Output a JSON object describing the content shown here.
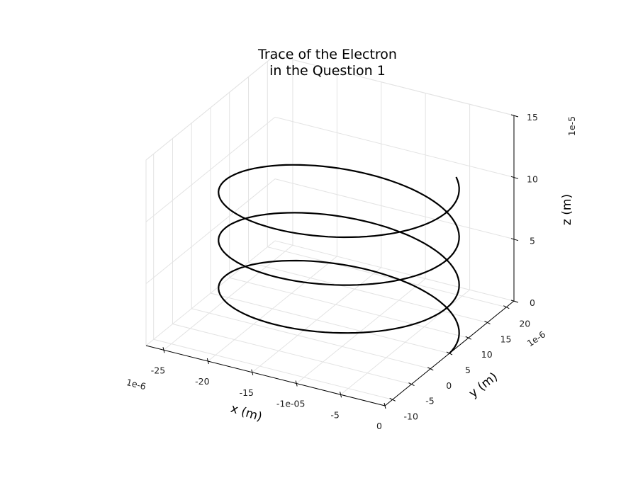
{
  "chart_data": {
    "type": "line3d",
    "title": [
      "Trace of the Electron",
      "in the Question 1"
    ],
    "xlabel": "x (m)",
    "ylabel": "y (m)",
    "zlabel": "z (m)",
    "x_offset": "1e-6",
    "y_offset": "1e-6",
    "z_offset": "1e-5",
    "x_ticks": [
      "-25",
      "-20",
      "-15",
      "-1e-05",
      "-5",
      "0"
    ],
    "y_ticks": [
      "-10",
      "-5",
      "0",
      "5",
      "10",
      "15",
      "20"
    ],
    "z_ticks": [
      "0",
      "5",
      "10",
      "15"
    ],
    "xlim": [
      -27,
      0
    ],
    "ylim": [
      -12,
      22
    ],
    "zlim": [
      0,
      15
    ],
    "grid": true,
    "color": "#000000",
    "series": [
      {
        "center_x": -12.5,
        "center_y": 5,
        "radius": 12.5,
        "z_start": 0,
        "z_end": 12,
        "turns": 3.1
      }
    ]
  }
}
